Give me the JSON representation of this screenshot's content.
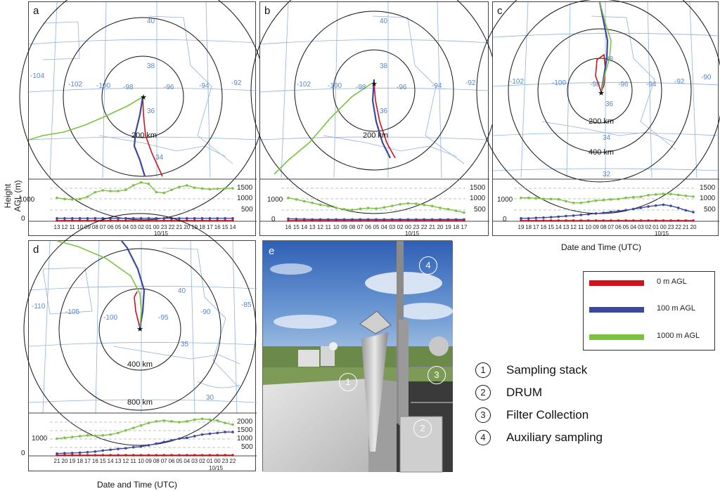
{
  "panels": {
    "a": {
      "label": "a",
      "lon_labels": [
        "-104",
        "-102",
        "-100",
        "-98",
        "-96",
        "-94",
        "-92"
      ],
      "lat_labels": [
        "40",
        "38",
        "36",
        "34"
      ],
      "ring_labels": [
        "200 km"
      ],
      "height_ticks": [
        "1500",
        "1000",
        "500"
      ],
      "height_left": [
        "1000",
        "0"
      ],
      "time_ticks": [
        "13",
        "12",
        "11",
        "10",
        "09",
        "08",
        "07",
        "06",
        "05",
        "04",
        "03",
        "02",
        "01",
        "00",
        "23",
        "22",
        "21",
        "20",
        "19",
        "18",
        "17",
        "16",
        "15",
        "14"
      ],
      "date_label": "10/15"
    },
    "b": {
      "label": "b",
      "lon_labels": [
        "-102",
        "-100",
        "-98",
        "-96",
        "-94",
        "-92"
      ],
      "lat_labels": [
        "40",
        "38",
        "36"
      ],
      "ring_labels": [
        "200 km"
      ],
      "height_ticks": [
        "1500",
        "1000",
        "500"
      ],
      "height_left": [
        "1000",
        "0"
      ],
      "time_ticks": [
        "16",
        "15",
        "14",
        "13",
        "12",
        "11",
        "10",
        "09",
        "08",
        "07",
        "06",
        "05",
        "04",
        "03",
        "02",
        "00",
        "23",
        "22",
        "21",
        "20",
        "19",
        "18",
        "17"
      ],
      "date_label": "10/15"
    },
    "c": {
      "label": "c",
      "lon_labels": [
        "-102",
        "-100",
        "-98",
        "-96",
        "-94",
        "-92",
        "-90"
      ],
      "lat_labels": [
        "38",
        "36",
        "34",
        "32"
      ],
      "ring_labels": [
        "200 km",
        "400 km"
      ],
      "height_ticks": [
        "1500",
        "1000",
        "500"
      ],
      "height_left": [
        "1000",
        "0"
      ],
      "time_ticks": [
        "19",
        "18",
        "17",
        "16",
        "15",
        "14",
        "13",
        "12",
        "11",
        "10",
        "09",
        "08",
        "07",
        "06",
        "05",
        "04",
        "03",
        "02",
        "01",
        "00",
        "23",
        "22",
        "21",
        "20"
      ],
      "date_label": "10/15"
    },
    "d": {
      "label": "d",
      "lon_labels": [
        "-110",
        "-105",
        "-100",
        "-95",
        "-90",
        "-85"
      ],
      "lat_labels": [
        "40",
        "35",
        "30"
      ],
      "ring_labels": [
        "400 km",
        "800 km"
      ],
      "height_ticks": [
        "2000",
        "1500",
        "1000",
        "500"
      ],
      "height_left": [
        "1000",
        "0"
      ],
      "time_ticks": [
        "21",
        "20",
        "19",
        "18",
        "17",
        "16",
        "15",
        "14",
        "13",
        "12",
        "11",
        "10",
        "09",
        "08",
        "07",
        "06",
        "05",
        "04",
        "03",
        "02",
        "01",
        "00",
        "23",
        "22"
      ],
      "date_label": "10/15"
    }
  },
  "photo": {
    "label": "e",
    "markers": [
      "1",
      "2",
      "3",
      "4"
    ]
  },
  "shared": {
    "ylabel_line1": "Height",
    "ylabel_line2": "AGL (m)",
    "xlabel_top": "Date and Time (UTC)",
    "xlabel_bottom": "Date and Time (UTC)"
  },
  "legend": {
    "items": [
      {
        "label": "0 m AGL",
        "color": "#d0121b"
      },
      {
        "label": "100 m AGL",
        "color": "#3b48a0"
      },
      {
        "label": "1000 m AGL",
        "color": "#7cc242"
      }
    ]
  },
  "key": {
    "items": [
      {
        "num": "1",
        "text": "Sampling stack"
      },
      {
        "num": "2",
        "text": "DRUM"
      },
      {
        "num": "3",
        "text": "Filter Collection"
      },
      {
        "num": "4",
        "text": "Auxiliary sampling"
      }
    ]
  },
  "chart_data": [
    {
      "type": "line",
      "panel": "a",
      "title": "",
      "xlabel": "Date and Time (UTC)",
      "ylabel": "Height AGL (m)",
      "x": [
        "13",
        "12",
        "11",
        "10",
        "09",
        "08",
        "07",
        "06",
        "05",
        "04",
        "03",
        "02",
        "01",
        "00",
        "23",
        "22",
        "21",
        "20",
        "19",
        "18",
        "17",
        "16",
        "15",
        "14"
      ],
      "series": [
        {
          "name": "1000 m AGL",
          "values": [
            1000,
            950,
            930,
            950,
            1050,
            1250,
            1330,
            1300,
            1300,
            1350,
            1550,
            1680,
            1620,
            1250,
            1220,
            1350,
            1480,
            1550,
            1450,
            1410,
            1380,
            1400,
            1420,
            1420
          ]
        },
        {
          "name": "100 m AGL",
          "values": [
            100,
            100,
            100,
            100,
            100,
            100,
            100,
            100,
            100,
            100,
            100,
            100,
            100,
            100,
            100,
            100,
            100,
            100,
            100,
            100,
            100,
            100,
            100,
            100
          ]
        },
        {
          "name": "0 m AGL",
          "values": [
            0,
            0,
            0,
            0,
            0,
            0,
            0,
            0,
            0,
            0,
            0,
            0,
            0,
            0,
            0,
            0,
            0,
            0,
            0,
            0,
            0,
            0,
            0,
            0
          ]
        }
      ],
      "ylim": [
        0,
        1700
      ]
    },
    {
      "type": "line",
      "panel": "b",
      "title": "",
      "xlabel": "Date and Time (UTC)",
      "ylabel": "Height AGL (m)",
      "x": [
        "16",
        "15",
        "14",
        "13",
        "12",
        "11",
        "10",
        "09",
        "08",
        "07",
        "06",
        "05",
        "04",
        "03",
        "02",
        "00",
        "23",
        "22",
        "21",
        "20",
        "19",
        "18",
        "17"
      ],
      "series": [
        {
          "name": "1000 m AGL",
          "values": [
            1000,
            930,
            850,
            780,
            700,
            640,
            560,
            500,
            470,
            520,
            550,
            530,
            580,
            650,
            720,
            760,
            740,
            690,
            640,
            560,
            500,
            430,
            350
          ]
        },
        {
          "name": "100 m AGL",
          "values": [
            80,
            70,
            60,
            50,
            50,
            50,
            50,
            50,
            50,
            50,
            50,
            50,
            50,
            50,
            50,
            50,
            50,
            50,
            50,
            50,
            50,
            50,
            50
          ]
        },
        {
          "name": "0 m AGL",
          "values": [
            0,
            0,
            0,
            0,
            0,
            0,
            0,
            0,
            0,
            0,
            0,
            0,
            0,
            0,
            0,
            0,
            0,
            0,
            0,
            0,
            0,
            0,
            0
          ]
        }
      ],
      "ylim": [
        0,
        1700
      ]
    },
    {
      "type": "line",
      "panel": "c",
      "title": "",
      "xlabel": "Date and Time (UTC)",
      "ylabel": "Height AGL (m)",
      "x": [
        "19",
        "18",
        "17",
        "16",
        "15",
        "14",
        "13",
        "12",
        "11",
        "10",
        "09",
        "08",
        "07",
        "06",
        "05",
        "04",
        "03",
        "02",
        "01",
        "00",
        "23",
        "22",
        "21",
        "20"
      ],
      "series": [
        {
          "name": "1000 m AGL",
          "values": [
            1000,
            1000,
            980,
            960,
            950,
            940,
            850,
            780,
            780,
            830,
            880,
            900,
            930,
            950,
            1000,
            1030,
            1050,
            1120,
            1150,
            1180,
            1170,
            1130,
            1090,
            1060
          ]
        },
        {
          "name": "100 m AGL",
          "values": [
            100,
            100,
            120,
            130,
            150,
            170,
            200,
            220,
            250,
            280,
            310,
            340,
            380,
            420,
            460,
            510,
            560,
            620,
            660,
            700,
            650,
            560,
            450,
            370
          ]
        },
        {
          "name": "0 m AGL",
          "values": [
            0,
            0,
            0,
            0,
            0,
            0,
            0,
            0,
            0,
            0,
            0,
            0,
            0,
            0,
            0,
            0,
            0,
            0,
            0,
            0,
            0,
            0,
            0,
            0
          ]
        }
      ],
      "ylim": [
        0,
        1700
      ]
    },
    {
      "type": "line",
      "panel": "d",
      "title": "",
      "xlabel": "Date and Time (UTC)",
      "ylabel": "Height AGL (m)",
      "x": [
        "21",
        "20",
        "19",
        "18",
        "17",
        "16",
        "15",
        "14",
        "13",
        "12",
        "11",
        "10",
        "09",
        "08",
        "07",
        "06",
        "05",
        "04",
        "03",
        "02",
        "01",
        "00",
        "23",
        "22"
      ],
      "series": [
        {
          "name": "1000 m AGL",
          "values": [
            1000,
            1050,
            1100,
            1150,
            1200,
            1180,
            1200,
            1250,
            1350,
            1500,
            1650,
            1800,
            1950,
            2050,
            2100,
            2050,
            2000,
            2050,
            2150,
            2200,
            2150,
            2100,
            1950,
            1850
          ]
        },
        {
          "name": "100 m AGL",
          "values": [
            100,
            120,
            130,
            150,
            180,
            220,
            280,
            330,
            380,
            420,
            480,
            520,
            600,
            700,
            800,
            900,
            1000,
            1050,
            1150,
            1250,
            1300,
            1350,
            1400,
            1400
          ]
        },
        {
          "name": "0 m AGL",
          "values": [
            0,
            0,
            0,
            0,
            0,
            0,
            0,
            0,
            0,
            0,
            0,
            0,
            0,
            0,
            0,
            0,
            0,
            0,
            0,
            0,
            0,
            0,
            0,
            0
          ]
        }
      ],
      "ylim": [
        0,
        2300
      ]
    }
  ]
}
